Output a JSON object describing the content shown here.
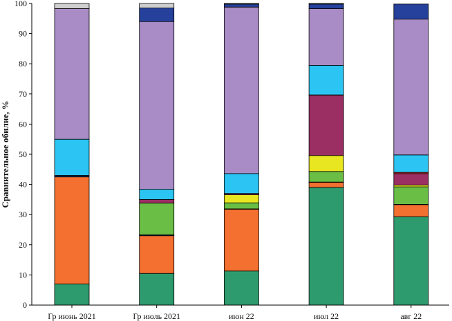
{
  "chart_data": {
    "type": "bar",
    "stacked": true,
    "title": "",
    "xlabel": "",
    "ylabel": "Сравнительное обилие, %",
    "ylim": [
      0,
      100
    ],
    "yticks": [
      0,
      10,
      20,
      30,
      40,
      50,
      60,
      70,
      80,
      90,
      100
    ],
    "grid": false,
    "categories": [
      "Гр июнь 2021",
      "Гр июль 2021",
      "июн 22",
      "июл 22",
      "авг 22"
    ],
    "series": [
      {
        "name": "s1",
        "color": "#2e9b6e",
        "values": [
          7,
          10.5,
          11.3,
          39,
          29.3
        ]
      },
      {
        "name": "s2",
        "color": "#f47030",
        "values": [
          35.5,
          12.5,
          20.5,
          1.7,
          4.0
        ]
      },
      {
        "name": "s3",
        "color": "#1a2a5a",
        "values": [
          0.5,
          0.3,
          0.1,
          0.1,
          0.1
        ]
      },
      {
        "name": "s4",
        "color": "#6abe45",
        "values": [
          0,
          10.5,
          2,
          3.5,
          5.8
        ]
      },
      {
        "name": "s5",
        "color": "#e8e620",
        "values": [
          0,
          0,
          2.7,
          5.3,
          0.6
        ]
      },
      {
        "name": "s6",
        "color": "#9b2e62",
        "values": [
          0,
          1.2,
          0.4,
          20,
          3.8
        ]
      },
      {
        "name": "s7",
        "color": "#e23030",
        "values": [
          0,
          0,
          0,
          0.1,
          0.4
        ]
      },
      {
        "name": "s8",
        "color": "#2cc4f2",
        "values": [
          12,
          3.4,
          6.6,
          9.8,
          5.8
        ]
      },
      {
        "name": "s9",
        "color": "#a98cc6",
        "values": [
          43.3,
          55.6,
          55.2,
          18.8,
          45
        ]
      },
      {
        "name": "s10",
        "color": "#26419c",
        "values": [
          0,
          4.5,
          1,
          1.5,
          5
        ]
      },
      {
        "name": "s11",
        "color": "#cfcfcf",
        "values": [
          1.7,
          1.5,
          0.2,
          0.2,
          0
        ]
      }
    ]
  }
}
